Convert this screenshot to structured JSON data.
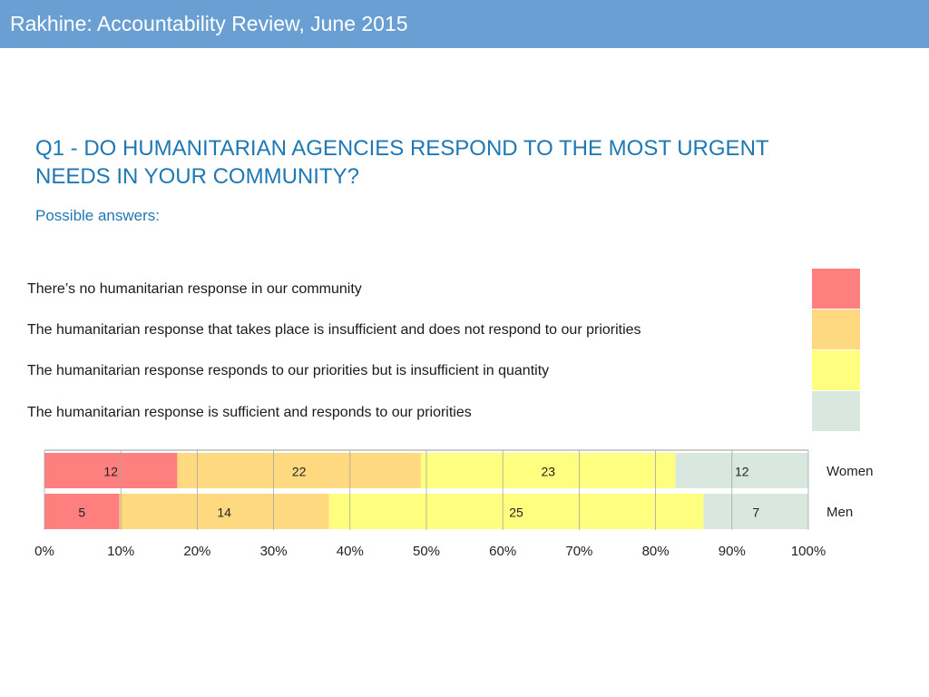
{
  "header": {
    "title": "Rakhine: Accountability Review, June 2015"
  },
  "question": {
    "line1": "Q1 - DO HUMANITARIAN AGENCIES RESPOND TO THE MOST URGENT",
    "line2": "NEEDS IN YOUR COMMUNITY?",
    "subtitle": "Possible answers:"
  },
  "legend": {
    "items": [
      {
        "label": "There’s no humanitarian response in our community",
        "color": "#ff7f7f"
      },
      {
        "label": "The humanitarian response that takes place is insufficient and does not respond to our priorities",
        "color": "#ffd97f"
      },
      {
        "label": "The humanitarian response responds to our priorities but is insufficient in quantity",
        "color": "#ffff7f"
      },
      {
        "label": "The humanitarian response is sufficient and responds to our priorities",
        "color": "#d9e8df"
      }
    ]
  },
  "chart_data": {
    "type": "bar",
    "orientation": "horizontal",
    "stacked": "100%",
    "categories": [
      "Women",
      "Men"
    ],
    "series": [
      {
        "values": [
          12,
          5
        ],
        "color": "#ff7f7f"
      },
      {
        "values": [
          22,
          14
        ],
        "color": "#ffd97f"
      },
      {
        "values": [
          23,
          25
        ],
        "color": "#ffff7f"
      },
      {
        "values": [
          12,
          7
        ],
        "color": "#d9e8df"
      }
    ],
    "xticks": [
      "0%",
      "10%",
      "20%",
      "30%",
      "40%",
      "50%",
      "60%",
      "70%",
      "80%",
      "90%",
      "100%"
    ],
    "xlim": [
      0,
      100
    ],
    "grid": true,
    "legend": "top"
  }
}
